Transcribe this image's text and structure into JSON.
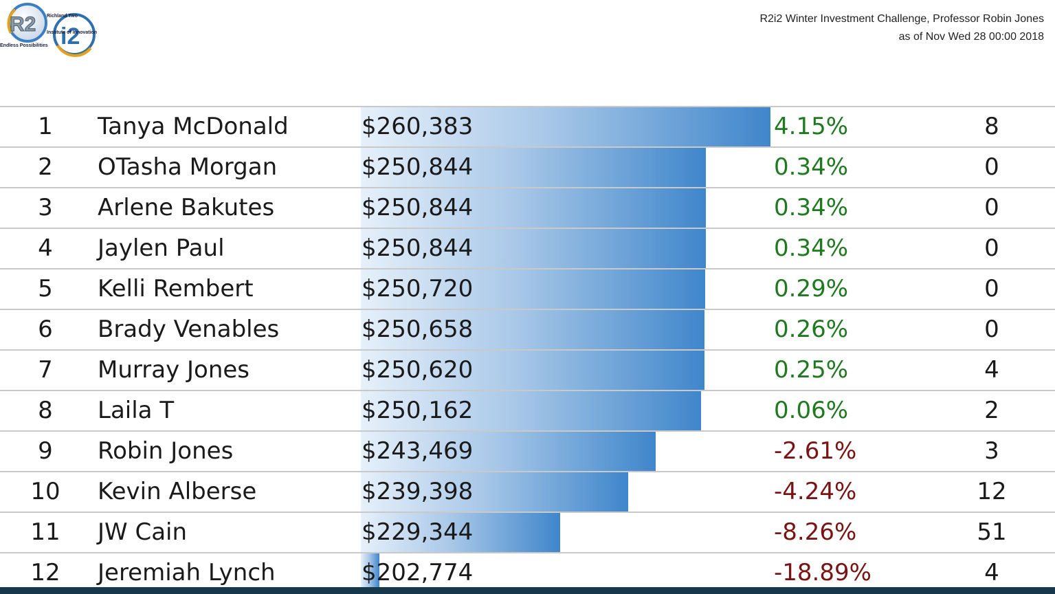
{
  "brand": {
    "logo_r2": "R2",
    "logo_i2": "i2",
    "tagline_line1": "Richland Two",
    "tagline_line2": "Institute of Innovation",
    "footer": "Endless Possibilities"
  },
  "header": {
    "title": "R2i2 Winter Investment Challenge, Professor Robin Jones",
    "date": "as of Nov Wed 28 00:00 2018"
  },
  "colors": {
    "positive": "#1f7a1f",
    "negative": "#7a1414",
    "bar_end": "#3f86cb"
  },
  "leaderboard": {
    "bar_scale_max": 260383,
    "bar_scale_min": 200000,
    "rows": [
      {
        "rank": "1",
        "name": "Tanya McDonald",
        "value": "$260,383",
        "amount": 260383,
        "change": "4.15%",
        "trades": "8"
      },
      {
        "rank": "2",
        "name": "OTasha Morgan",
        "value": "$250,844",
        "amount": 250844,
        "change": "0.34%",
        "trades": "0"
      },
      {
        "rank": "3",
        "name": "Arlene Bakutes",
        "value": "$250,844",
        "amount": 250844,
        "change": "0.34%",
        "trades": "0"
      },
      {
        "rank": "4",
        "name": "Jaylen Paul",
        "value": "$250,844",
        "amount": 250844,
        "change": "0.34%",
        "trades": "0"
      },
      {
        "rank": "5",
        "name": "Kelli Rembert",
        "value": "$250,720",
        "amount": 250720,
        "change": "0.29%",
        "trades": "0"
      },
      {
        "rank": "6",
        "name": "Brady Venables",
        "value": "$250,658",
        "amount": 250658,
        "change": "0.26%",
        "trades": "0"
      },
      {
        "rank": "7",
        "name": "Murray Jones",
        "value": "$250,620",
        "amount": 250620,
        "change": "0.25%",
        "trades": "4"
      },
      {
        "rank": "8",
        "name": "Laila T",
        "value": "$250,162",
        "amount": 250162,
        "change": "0.06%",
        "trades": "2"
      },
      {
        "rank": "9",
        "name": "Robin Jones",
        "value": "$243,469",
        "amount": 243469,
        "change": "-2.61%",
        "trades": "3"
      },
      {
        "rank": "10",
        "name": "Kevin Alberse",
        "value": "$239,398",
        "amount": 239398,
        "change": "-4.24%",
        "trades": "12"
      },
      {
        "rank": "11",
        "name": "JW Cain",
        "value": "$229,344",
        "amount": 229344,
        "change": "-8.26%",
        "trades": "51"
      },
      {
        "rank": "12",
        "name": "Jeremiah Lynch",
        "value": "$202,774",
        "amount": 202774,
        "change": "-18.89%",
        "trades": "4"
      }
    ]
  }
}
